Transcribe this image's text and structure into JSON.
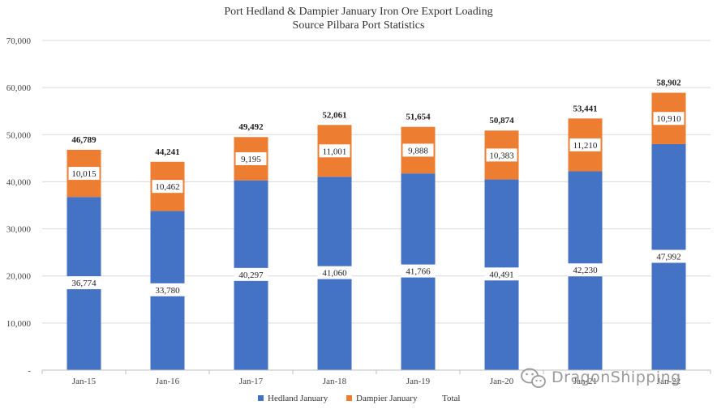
{
  "chart_data": {
    "type": "bar",
    "stacked": true,
    "title": "Port Hedland & Dampier January Iron Ore Export Loading",
    "subtitle": "Source Pilbara Port Statistics",
    "categories": [
      "Jan-15",
      "Jan-16",
      "Jan-17",
      "Jan-18",
      "Jan-19",
      "Jan-20",
      "Jan-21",
      "Jan-22"
    ],
    "series": [
      {
        "name": "Hedland January",
        "color": "#4472C4",
        "values": [
          36774,
          33780,
          40297,
          41060,
          41766,
          40491,
          42230,
          47992
        ],
        "labels": [
          "36,774",
          "33,780",
          "40,297",
          "41,060",
          "41,766",
          "40,491",
          "42,230",
          "47,992"
        ]
      },
      {
        "name": "Dampier January",
        "color": "#ED7D31",
        "values": [
          10015,
          10462,
          9195,
          11001,
          9888,
          10383,
          11210,
          10910
        ],
        "labels": [
          "10,015",
          "10,462",
          "9,195",
          "11,001",
          "9,888",
          "10,383",
          "11,210",
          "10,910"
        ]
      },
      {
        "name": "Total",
        "color": "#ffffff",
        "values": [
          46789,
          44241,
          49492,
          52061,
          51654,
          50874,
          53441,
          58902
        ],
        "labels": [
          "46,789",
          "44,241",
          "49,492",
          "52,061",
          "51,654",
          "50,874",
          "53,441",
          "58,902"
        ]
      }
    ],
    "ylim": [
      0,
      70000
    ],
    "yticks": [
      0,
      10000,
      20000,
      30000,
      40000,
      50000,
      60000,
      70000
    ],
    "ytick_labels": [
      "-",
      "10,000",
      "20,000",
      "30,000",
      "40,000",
      "50,000",
      "60,000",
      "70,000"
    ],
    "grid": true,
    "legend": "bottom"
  },
  "watermark": {
    "text": "DragonShipping",
    "icon": "wechat-icon"
  }
}
